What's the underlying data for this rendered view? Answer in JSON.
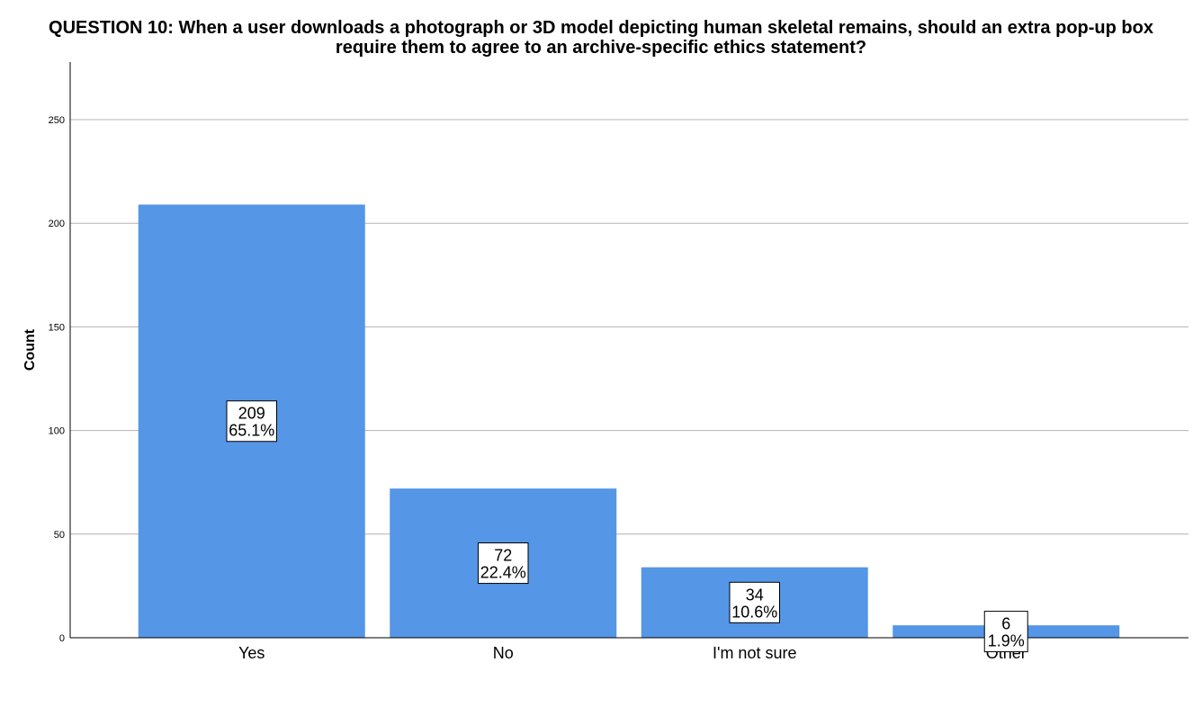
{
  "chart_data": {
    "type": "bar",
    "title_lines": [
      "QUESTION 10: When a user downloads a photograph or 3D model depicting human skeletal remains, should an extra pop-up box",
      "require them to agree to an archive-specific ethics statement?"
    ],
    "xlabel": "",
    "ylabel": "Count",
    "categories": [
      "Yes",
      "No",
      "I'm not sure",
      "Other"
    ],
    "values": [
      209,
      72,
      34,
      6
    ],
    "percent_labels": [
      "65.1%",
      "22.4%",
      "10.6%",
      "1.9%"
    ],
    "ylim": [
      0,
      250
    ],
    "yticks": [
      0,
      50,
      100,
      150,
      200,
      250
    ],
    "grid": "horizontal",
    "legend": "none",
    "colors": {
      "bar": "#5596e6",
      "grid": "#b3b3b3",
      "axis": "#000000",
      "label_box_bg": "#ffffff",
      "text": "#000000"
    }
  }
}
